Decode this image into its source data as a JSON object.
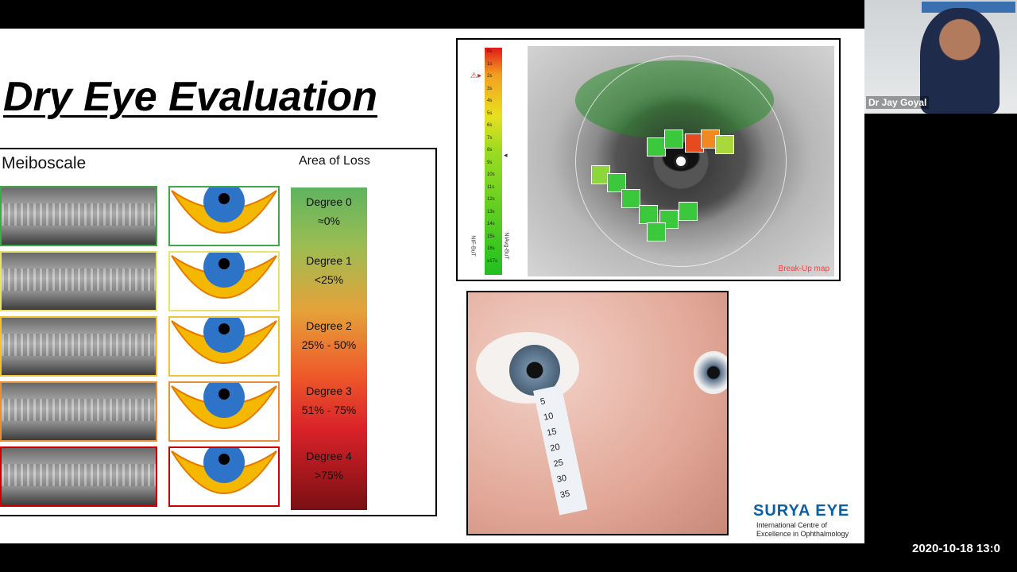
{
  "slide": {
    "title": "Dry Eye Evaluation",
    "meiboscale": {
      "title": "Meiboscale",
      "area_header": "Area of Loss",
      "degrees": [
        {
          "label": "Degree 0",
          "range": "≈0%",
          "frame_color": "#3da94a"
        },
        {
          "label": "Degree 1",
          "range": "<25%",
          "frame_color": "#e8e36a"
        },
        {
          "label": "Degree 2",
          "range": "25% - 50%",
          "frame_color": "#f1c232"
        },
        {
          "label": "Degree 3",
          "range": "51% - 75%",
          "frame_color": "#e69138"
        },
        {
          "label": "Degree 4",
          "range": ">75%",
          "frame_color": "#cc0000"
        }
      ]
    },
    "breakup_map": {
      "label": "Break-Up map",
      "scale_ticks": [
        "0s",
        "1s",
        "2s",
        "3s",
        "4s",
        "5s",
        "6s",
        "7s",
        "8s",
        "9s",
        "10s",
        "11s",
        "12s",
        "13s",
        "14s",
        "15s",
        "16s",
        "≥17s"
      ],
      "left_axis": "NIF-BuT",
      "right_axis": "NIAvg-BuT"
    },
    "schirmer_strip_numbers": [
      "5",
      "10",
      "15",
      "20",
      "25",
      "30",
      "35"
    ],
    "logo": {
      "name": "SURYA EYE",
      "sub_line1": "International Centre of",
      "sub_line2": "Excellence in Ophthalmology"
    }
  },
  "webcam": {
    "participant_name": "Dr Jay Goyal"
  },
  "timestamp": "2020-10-18 13:0"
}
